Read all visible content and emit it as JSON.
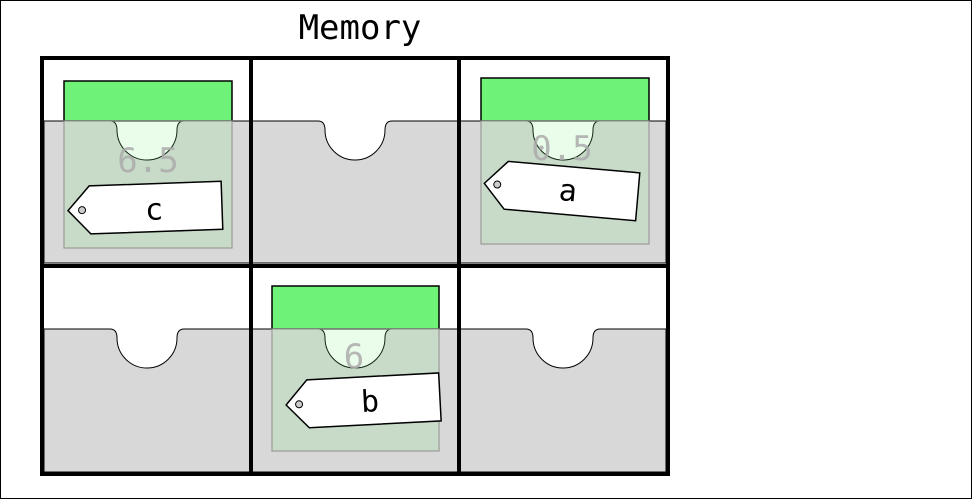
{
  "title": "Memory",
  "colors": {
    "card_fill": "#6ff278",
    "pocket_fill": "#d8d8d8",
    "background": "#ffffff",
    "stroke": "#000000"
  },
  "cells": [
    {
      "row": 0,
      "col": 0,
      "value": "6.5",
      "tag": "c"
    },
    {
      "row": 0,
      "col": 1,
      "value": "",
      "tag": ""
    },
    {
      "row": 0,
      "col": 2,
      "value": "0.5",
      "tag": "a"
    },
    {
      "row": 1,
      "col": 0,
      "value": "",
      "tag": ""
    },
    {
      "row": 1,
      "col": 1,
      "value": "6",
      "tag": "b"
    },
    {
      "row": 1,
      "col": 2,
      "value": "",
      "tag": ""
    }
  ]
}
